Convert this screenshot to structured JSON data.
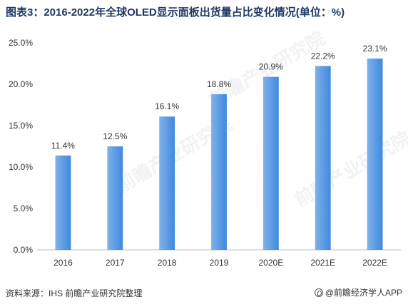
{
  "title": "图表3：2016-2022年全球OLED显示面板出货量占比变化情况(单位：%)",
  "source": "资料来源：IHS 前瞻产业研究院整理",
  "brand": "@前瞻经济学人APP",
  "watermark": "前瞻产业研究院",
  "colors": {
    "bar_start": "#7fb2ea",
    "bar_end": "#3f88e0",
    "title": "#1f3864",
    "axis": "#bfbfbf"
  },
  "chart_data": {
    "type": "bar",
    "categories": [
      "2016",
      "2017",
      "2018",
      "2019",
      "2020E",
      "2021E",
      "2022E"
    ],
    "values": [
      11.4,
      12.5,
      16.1,
      18.8,
      20.9,
      22.2,
      23.1
    ],
    "data_labels": [
      "11.4%",
      "12.5%",
      "16.1%",
      "18.8%",
      "20.9%",
      "22.2%",
      "23.1%"
    ],
    "yticks": [
      "0.0%",
      "5.0%",
      "10.0%",
      "15.0%",
      "20.0%",
      "25.0%"
    ],
    "ylim": [
      0,
      25
    ],
    "ystep": 5,
    "grid": false,
    "legend": "none"
  }
}
